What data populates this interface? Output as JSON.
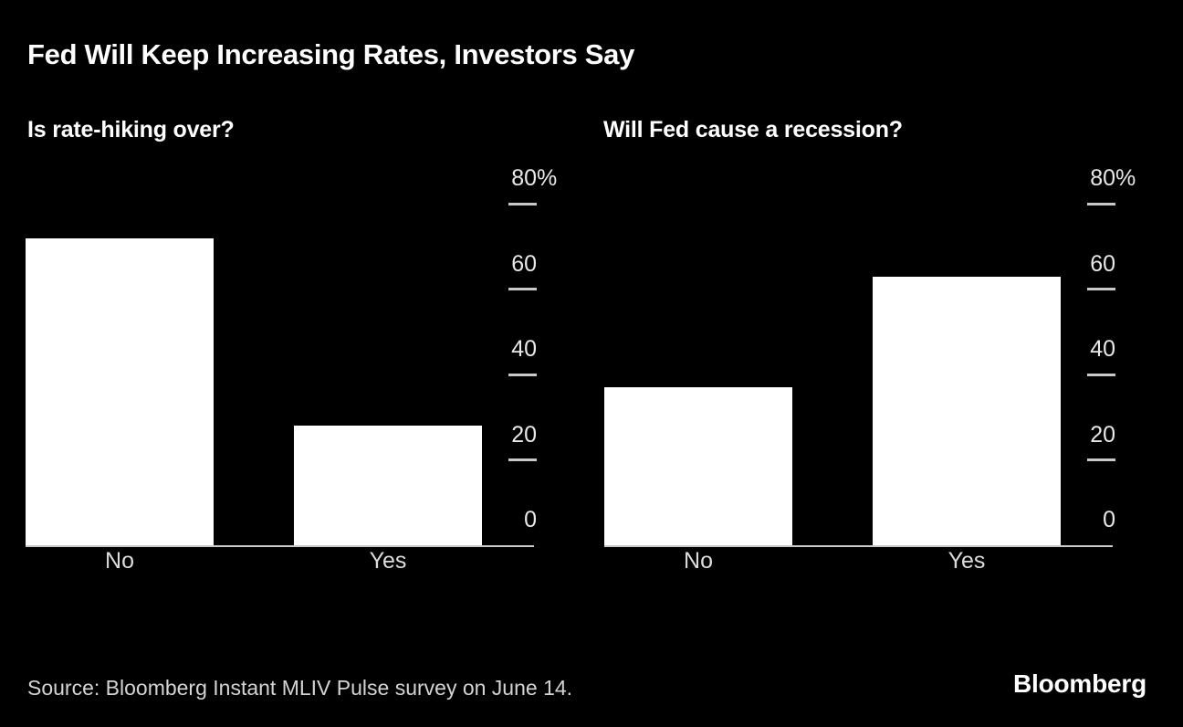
{
  "page": {
    "title": "Fed Will Keep Increasing Rates, Investors Say",
    "background_color": "#000000"
  },
  "colors": {
    "bar": "#ffffff",
    "axis": "#c9c9c9",
    "tick_label": "#e8e8e8",
    "category_label": "#dcdcdc",
    "title": "#ffffff",
    "source": "#d4d4d4"
  },
  "chart_data": [
    {
      "type": "bar",
      "title": "Is rate-hiking over?",
      "categories": [
        "No",
        "Yes"
      ],
      "values": [
        72,
        28
      ],
      "xlabel": "",
      "ylabel": "",
      "ylim": [
        0,
        80
      ],
      "yticks": [
        0,
        20,
        40,
        60,
        80
      ],
      "ytick_labels": [
        "0",
        "20",
        "40",
        "60",
        "80%"
      ],
      "unit": "%",
      "grid": false,
      "legend": false,
      "axis_side": "right",
      "bar_color": "#ffffff"
    },
    {
      "type": "bar",
      "title": "Will Fed cause a recession?",
      "categories": [
        "No",
        "Yes"
      ],
      "values": [
        37,
        63
      ],
      "xlabel": "",
      "ylabel": "",
      "ylim": [
        0,
        80
      ],
      "yticks": [
        0,
        20,
        40,
        60,
        80
      ],
      "ytick_labels": [
        "0",
        "20",
        "40",
        "60",
        "80%"
      ],
      "unit": "%",
      "grid": false,
      "legend": false,
      "axis_side": "right",
      "bar_color": "#ffffff"
    }
  ],
  "footer": {
    "source": "Source: Bloomberg Instant MLIV Pulse survey on June 14.",
    "brand": "Bloomberg"
  }
}
